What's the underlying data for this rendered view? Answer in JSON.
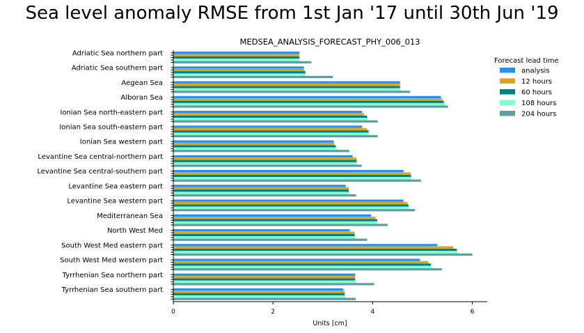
{
  "chart_data": {
    "type": "bar",
    "orientation": "horizontal",
    "title": "Sea level anomaly RMSE from 1st Jan '17 until 30th Jun '19",
    "subtitle": "MEDSEA_ANALYSIS_FORECAST_PHY_006_013",
    "xlabel": "Units [cm]",
    "xlim": [
      0,
      6.3
    ],
    "xticks": [
      0,
      2,
      4,
      6
    ],
    "grid": false,
    "legend": {
      "title": "Forecast lead time",
      "placement": "right"
    },
    "categories": [
      "Adriatic Sea northern part",
      "Adriatic Sea southern part",
      "Aegean Sea",
      "Alboran Sea",
      "Ionian Sea north-eastern part",
      "Ionian Sea south-eastern part",
      "Ionian Sea western part",
      "Levantine Sea central-northern part",
      "Levantine Sea central-southern part",
      "Levantine Sea eastern part",
      "Levantine Sea western part",
      "Mediterranean Sea",
      "North West Med",
      "South West Med eastern part",
      "South West Med western part",
      "Tyrrhenian Sea northern part",
      "Tyrrhenian Sea southern part"
    ],
    "series": [
      {
        "name": "analysis",
        "color": "#1e90ff",
        "values": [
          2.53,
          2.62,
          4.55,
          5.37,
          3.79,
          3.79,
          3.22,
          3.6,
          4.62,
          3.46,
          4.62,
          3.97,
          3.54,
          5.3,
          4.95,
          3.65,
          3.41
        ]
      },
      {
        "name": "12 hours",
        "color": "#daa520",
        "values": [
          2.53,
          2.63,
          4.55,
          5.4,
          3.83,
          3.89,
          3.23,
          3.68,
          4.76,
          3.52,
          4.7,
          4.06,
          3.64,
          5.62,
          5.12,
          3.65,
          3.44
        ]
      },
      {
        "name": "60 hours",
        "color": "#008080",
        "values": [
          2.53,
          2.65,
          4.55,
          5.43,
          3.89,
          3.92,
          3.26,
          3.68,
          4.77,
          3.52,
          4.72,
          4.09,
          3.64,
          5.69,
          5.17,
          3.65,
          3.44
        ]
      },
      {
        "name": "108 hours",
        "color": "#7fffd4",
        "values": [
          2.53,
          2.65,
          4.56,
          5.45,
          3.9,
          3.92,
          3.28,
          3.68,
          4.78,
          3.52,
          4.74,
          4.09,
          3.65,
          5.7,
          5.19,
          3.66,
          3.45
        ]
      },
      {
        "name": "204 hours",
        "color": "#5f9ea0",
        "values": [
          2.77,
          3.2,
          4.75,
          5.51,
          4.1,
          4.1,
          3.53,
          3.78,
          4.97,
          3.67,
          4.85,
          4.3,
          3.89,
          6.0,
          5.39,
          4.03,
          3.66
        ]
      }
    ]
  }
}
